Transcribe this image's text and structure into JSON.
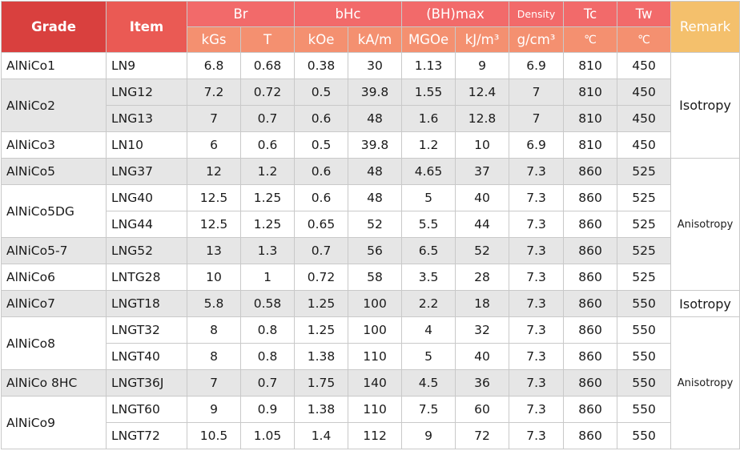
{
  "header": {
    "grade": "Grade",
    "item": "Item",
    "br": "Br",
    "bhc": "bHc",
    "bhmax": "(BH)max",
    "density": "Density",
    "tc": "Tc",
    "tw": "Tw",
    "remark": "Remark",
    "units": [
      "kGs",
      "T",
      "kOe",
      "kA/m",
      "MGOe",
      "kJ/m³",
      "g/cm³",
      "℃",
      "℃"
    ]
  },
  "rows": [
    {
      "grade": "AlNiCo1",
      "item": "LN9",
      "v": [
        "6.8",
        "0.68",
        "0.38",
        "30",
        "1.13",
        "9",
        "6.9",
        "810",
        "450"
      ]
    },
    {
      "grade": "AlNiCo2",
      "item": "LNG12",
      "v": [
        "7.2",
        "0.72",
        "0.5",
        "39.8",
        "1.55",
        "12.4",
        "7",
        "810",
        "450"
      ]
    },
    {
      "item": "LNG13",
      "v": [
        "7",
        "0.7",
        "0.6",
        "48",
        "1.6",
        "12.8",
        "7",
        "810",
        "450"
      ]
    },
    {
      "grade": "AlNiCo3",
      "item": "LN10",
      "v": [
        "6",
        "0.6",
        "0.5",
        "39.8",
        "1.2",
        "10",
        "6.9",
        "810",
        "450"
      ]
    },
    {
      "grade": "AlNiCo5",
      "item": "LNG37",
      "v": [
        "12",
        "1.2",
        "0.6",
        "48",
        "4.65",
        "37",
        "7.3",
        "860",
        "525"
      ]
    },
    {
      "grade": "AlNiCo5DG",
      "item": "LNG40",
      "v": [
        "12.5",
        "1.25",
        "0.6",
        "48",
        "5",
        "40",
        "7.3",
        "860",
        "525"
      ]
    },
    {
      "item": "LNG44",
      "v": [
        "12.5",
        "1.25",
        "0.65",
        "52",
        "5.5",
        "44",
        "7.3",
        "860",
        "525"
      ]
    },
    {
      "grade": "AlNiCo5-7",
      "item": "LNG52",
      "v": [
        "13",
        "1.3",
        "0.7",
        "56",
        "6.5",
        "52",
        "7.3",
        "860",
        "525"
      ]
    },
    {
      "grade": "AlNiCo6",
      "item": "LNTG28",
      "v": [
        "10",
        "1",
        "0.72",
        "58",
        "3.5",
        "28",
        "7.3",
        "860",
        "525"
      ]
    },
    {
      "grade": "AlNiCo7",
      "item": "LNGT18",
      "v": [
        "5.8",
        "0.58",
        "1.25",
        "100",
        "2.2",
        "18",
        "7.3",
        "860",
        "550"
      ]
    },
    {
      "grade": "AlNiCo8",
      "item": "LNGT32",
      "v": [
        "8",
        "0.8",
        "1.25",
        "100",
        "4",
        "32",
        "7.3",
        "860",
        "550"
      ]
    },
    {
      "item": "LNGT40",
      "v": [
        "8",
        "0.8",
        "1.38",
        "110",
        "5",
        "40",
        "7.3",
        "860",
        "550"
      ]
    },
    {
      "grade": "AlNiCo 8HC",
      "item": "LNGT36J",
      "v": [
        "7",
        "0.7",
        "1.75",
        "140",
        "4.5",
        "36",
        "7.3",
        "860",
        "550"
      ]
    },
    {
      "grade": "AlNiCo9",
      "item": "LNGT60",
      "v": [
        "9",
        "0.9",
        "1.38",
        "110",
        "7.5",
        "60",
        "7.3",
        "860",
        "550"
      ]
    },
    {
      "item": "LNGT72",
      "v": [
        "10.5",
        "1.05",
        "1.4",
        "112",
        "9",
        "72",
        "7.3",
        "860",
        "550"
      ]
    }
  ],
  "remarks": [
    "Isotropy",
    "Anisotropy",
    "Isotropy",
    "Anisotropy"
  ],
  "colors": {
    "grade_header": "#d9403e",
    "item_header": "#ea5a54",
    "group_header": "#f26a6a",
    "unit_header": "#f49070",
    "remark_header": "#f4c06c",
    "row_stripe": "#e6e6e6"
  }
}
